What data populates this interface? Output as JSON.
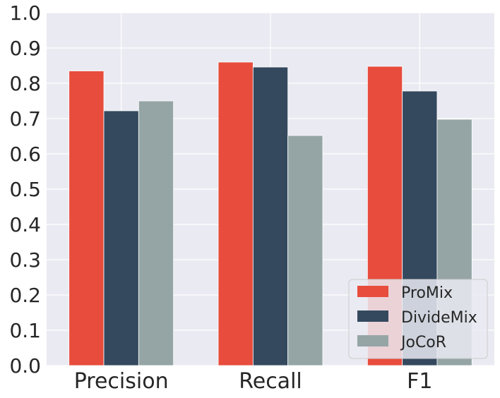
{
  "chart_data": {
    "type": "bar",
    "title": "",
    "xlabel": "",
    "ylabel": "",
    "categories": [
      "Precision",
      "Recall",
      "F1"
    ],
    "series": [
      {
        "name": "ProMix",
        "color": "#e74c3c",
        "values": [
          0.835,
          0.86,
          0.848
        ]
      },
      {
        "name": "DivideMix",
        "color": "#34495e",
        "values": [
          0.722,
          0.846,
          0.778
        ]
      },
      {
        "name": "JoCoR",
        "color": "#95a5a6",
        "values": [
          0.75,
          0.652,
          0.698
        ]
      }
    ],
    "ylim": [
      0.0,
      1.0
    ],
    "yticks": [
      "0.0",
      "0.1",
      "0.2",
      "0.3",
      "0.4",
      "0.5",
      "0.6",
      "0.7",
      "0.8",
      "0.9",
      "1.0"
    ],
    "grid": true,
    "legend_position": "bottom-right",
    "background": "#eaeaf2"
  }
}
